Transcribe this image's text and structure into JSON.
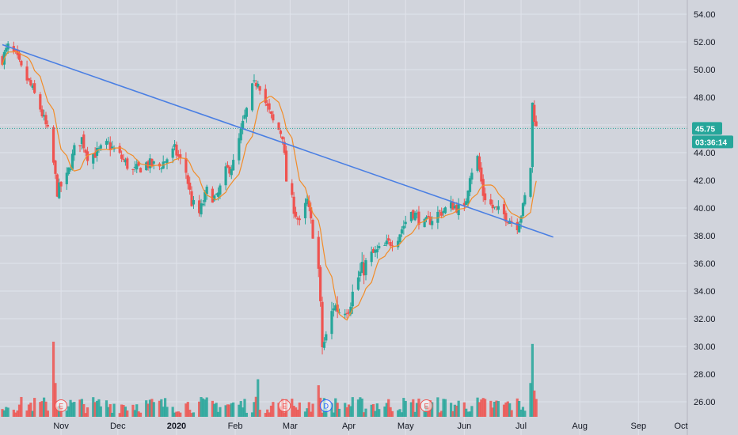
{
  "chart_data": {
    "type": "candlestick",
    "x_axis": {
      "tick_labels": [
        "Nov",
        "Dec",
        "2020",
        "Feb",
        "Mar",
        "Apr",
        "May",
        "Jun",
        "Jul",
        "Aug",
        "Sep",
        "Oct"
      ],
      "bold_labels": [
        "2020"
      ]
    },
    "y_axis": {
      "range": [
        25.0,
        55.0
      ],
      "tick_values": [
        26,
        28,
        30,
        32,
        34,
        36,
        38,
        40,
        42,
        44,
        46,
        48,
        50,
        52,
        54
      ],
      "tick_labels": [
        "26.00",
        "28.00",
        "30.00",
        "32.00",
        "34.00",
        "36.00",
        "38.00",
        "40.00",
        "42.00",
        "44.00",
        "46.00",
        "48.00",
        "50.00",
        "52.00",
        "54.00"
      ],
      "position": "right"
    },
    "grid": true,
    "last_price": {
      "value": 45.75,
      "label": "45.75",
      "countdown": "03:36:14"
    },
    "trendline": {
      "from": {
        "date": "2019-10-01",
        "price": 51.8
      },
      "to": {
        "date": "2020-07-18",
        "price": 37.9
      }
    },
    "moving_average": {
      "color": "#f28c28"
    },
    "events": [
      {
        "date": "2019-11-01",
        "label": "E",
        "kind": "earnings"
      },
      {
        "date": "2020-02-27",
        "label": "E",
        "kind": "earnings"
      },
      {
        "date": "2020-03-20",
        "label": "D",
        "kind": "dividend"
      },
      {
        "date": "2020-05-12",
        "label": "E",
        "kind": "earnings"
      }
    ],
    "colors": {
      "up": "#26a69a",
      "down": "#ef5350",
      "trendline": "#4a7fe3",
      "price_line": "#26a69a",
      "background": "#d1d4dc",
      "grid": "#e0e3eb",
      "earnings": "#ef5350",
      "dividend": "#2962ff"
    },
    "anchors": [
      [
        "2019-10-01",
        50.8
      ],
      [
        "2019-10-04",
        51.6
      ],
      [
        "2019-10-08",
        51.0
      ],
      [
        "2019-10-11",
        50.0
      ],
      [
        "2019-10-16",
        48.8
      ],
      [
        "2019-10-21",
        47.2
      ],
      [
        "2019-10-25",
        45.5
      ],
      [
        "2019-10-28",
        43.2
      ],
      [
        "2019-10-30",
        41.2
      ],
      [
        "2019-11-04",
        42.2
      ],
      [
        "2019-11-08",
        44.2
      ],
      [
        "2019-11-12",
        45.0
      ],
      [
        "2019-11-15",
        43.8
      ],
      [
        "2019-11-20",
        44.0
      ],
      [
        "2019-11-26",
        44.6
      ],
      [
        "2019-12-03",
        43.6
      ],
      [
        "2019-12-09",
        42.6
      ],
      [
        "2019-12-16",
        43.2
      ],
      [
        "2019-12-23",
        43.0
      ],
      [
        "2019-12-31",
        44.2
      ],
      [
        "2020-01-06",
        42.6
      ],
      [
        "2020-01-09",
        40.4
      ],
      [
        "2020-01-13",
        39.6
      ],
      [
        "2020-01-17",
        41.2
      ],
      [
        "2020-01-22",
        40.6
      ],
      [
        "2020-01-27",
        42.6
      ],
      [
        "2020-01-31",
        43.2
      ],
      [
        "2020-02-05",
        46.0
      ],
      [
        "2020-02-10",
        48.6
      ],
      [
        "2020-02-13",
        49.3
      ],
      [
        "2020-02-18",
        47.2
      ],
      [
        "2020-02-21",
        46.2
      ],
      [
        "2020-02-26",
        45.3
      ],
      [
        "2020-02-28",
        42.0
      ],
      [
        "2020-03-03",
        40.0
      ],
      [
        "2020-03-06",
        38.8
      ],
      [
        "2020-03-10",
        40.5
      ],
      [
        "2020-03-13",
        38.2
      ],
      [
        "2020-03-16",
        35.5
      ],
      [
        "2020-03-18",
        30.0
      ],
      [
        "2020-03-20",
        30.6
      ],
      [
        "2020-03-24",
        33.0
      ],
      [
        "2020-03-27",
        32.6
      ],
      [
        "2020-04-01",
        33.0
      ],
      [
        "2020-04-06",
        35.0
      ],
      [
        "2020-04-13",
        36.6
      ],
      [
        "2020-04-20",
        37.2
      ],
      [
        "2020-04-27",
        38.0
      ],
      [
        "2020-05-04",
        39.8
      ],
      [
        "2020-05-11",
        38.8
      ],
      [
        "2020-05-18",
        39.6
      ],
      [
        "2020-05-26",
        40.2
      ],
      [
        "2020-06-01",
        39.8
      ],
      [
        "2020-06-04",
        42.5
      ],
      [
        "2020-06-08",
        43.6
      ],
      [
        "2020-06-11",
        41.0
      ],
      [
        "2020-06-16",
        40.0
      ],
      [
        "2020-06-22",
        39.5
      ],
      [
        "2020-06-29",
        38.8
      ],
      [
        "2020-07-02",
        40.0
      ],
      [
        "2020-07-06",
        43.0
      ],
      [
        "2020-07-07",
        47.5
      ],
      [
        "2020-07-08",
        46.6
      ],
      [
        "2020-07-09",
        45.75
      ]
    ],
    "volume_spikes": [
      {
        "date": "2019-10-28",
        "relative": 1.0
      },
      {
        "date": "2019-10-29",
        "relative": 0.45
      },
      {
        "date": "2020-02-13",
        "relative": 0.5
      },
      {
        "date": "2020-03-16",
        "relative": 0.42
      },
      {
        "date": "2020-07-06",
        "relative": 0.45
      },
      {
        "date": "2020-07-07",
        "relative": 0.97
      },
      {
        "date": "2020-07-08",
        "relative": 0.35
      }
    ]
  }
}
